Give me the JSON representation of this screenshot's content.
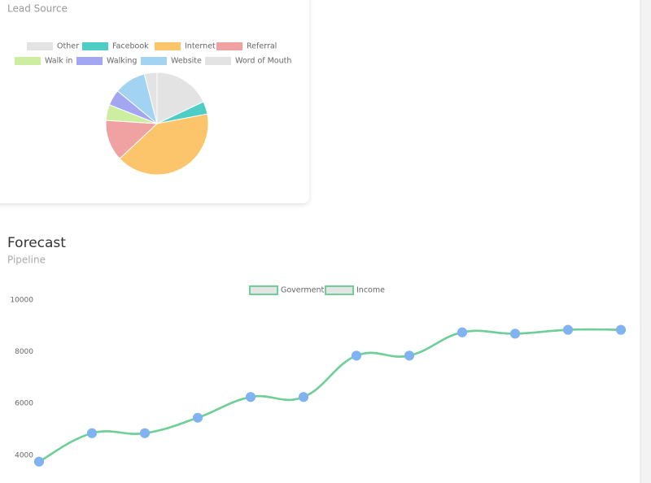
{
  "chart_data": [
    {
      "type": "pie",
      "title": "Lead Source",
      "categories": [
        "Other",
        "Facebook",
        "Internet",
        "Referral",
        "Walk in",
        "Walking",
        "Website",
        "Word of Mouth"
      ],
      "values": [
        18,
        4,
        41,
        13,
        5,
        5,
        10,
        4
      ],
      "colors": [
        "#e3e3e3",
        "#4ecdc4",
        "#fdc56b",
        "#f0a1a1",
        "#cdeea0",
        "#a3a6f0",
        "#a3d3f2",
        "#e3e3e3"
      ]
    },
    {
      "type": "line",
      "title": "Forecast",
      "subtitle": "Pipeline",
      "series": [
        {
          "name": "Goverment",
          "color": "#6fcf97",
          "point_color": "#80b3f0",
          "values": [
            3750,
            4850,
            4850,
            5450,
            6250,
            6250,
            7850,
            7850,
            8750,
            8700,
            8850,
            8850
          ]
        },
        {
          "name": "Income",
          "color": "#6fcf97",
          "point_color": "#80b3f0",
          "values": [
            3750,
            4850,
            4850,
            5450,
            6250,
            6250,
            7850,
            7850,
            8750,
            8700,
            8850,
            8850
          ]
        }
      ],
      "ylim": [
        2000,
        10000
      ],
      "yticks": [
        4000,
        6000,
        8000,
        10000
      ]
    }
  ]
}
